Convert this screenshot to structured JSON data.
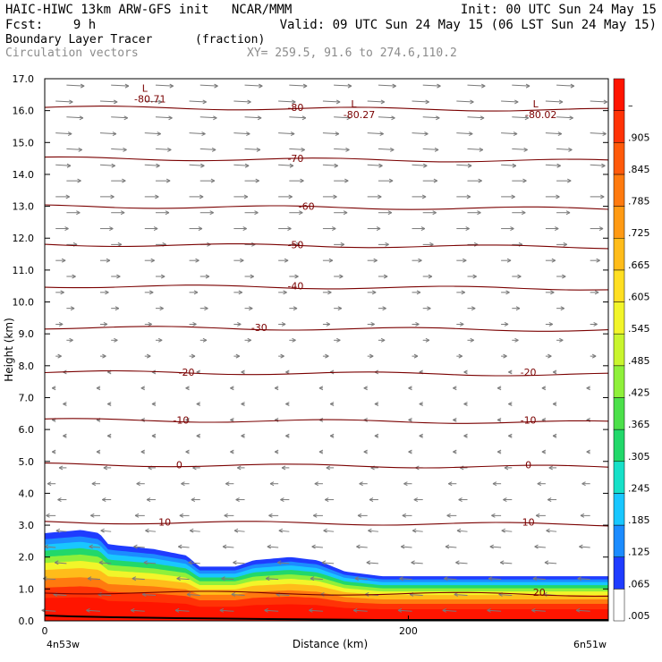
{
  "header": {
    "line1_left": "HAIC-HIWC 13km ARW-GFS init   NCAR/MMM",
    "line1_right": "Init: 00 UTC Sun 24 May 15",
    "fcst_label": "Fcst:    9 h",
    "valid": "Valid: 09 UTC Sun 24 May 15 (06 LST Sun 24 May 15)",
    "field_name": "Boundary Layer Tracer",
    "field_units": "(fraction)",
    "vectors_label": "Circulation vectors",
    "xy_label": "XY= 259.5, 91.6 to 274.6,110.2"
  },
  "chart_data": {
    "type": "cross-section",
    "xlabel": "Distance (km)",
    "ylabel": "Height (km)",
    "xlim": [
      0,
      310
    ],
    "ylim": [
      0,
      17
    ],
    "x_ticks": [
      "0",
      "200"
    ],
    "x_end_labels": [
      "4n53w",
      "6n51w"
    ],
    "y_ticks": [
      "0.0",
      "1.0",
      "2.0",
      "3.0",
      "4.0",
      "5.0",
      "6.0",
      "7.0",
      "8.0",
      "9.0",
      "10.0",
      "11.0",
      "12.0",
      "13.0",
      "14.0",
      "15.0",
      "16.0",
      "17.0"
    ],
    "colorbar_labels": [
      ".005",
      ".065",
      ".125",
      ".185",
      ".245",
      ".305",
      ".365",
      ".425",
      ".485",
      ".545",
      ".605",
      ".665",
      ".725",
      ".785",
      ".845",
      ".905",
      "–"
    ],
    "colorbar_colors": [
      "#ffffff",
      "#1f3cff",
      "#1c8cff",
      "#19c7ff",
      "#17e0c8",
      "#22d86a",
      "#4ce04a",
      "#8ff03a",
      "#c9f52e",
      "#f2f52a",
      "#ffdf22",
      "#ffbc1a",
      "#ff9a14",
      "#ff7a0f",
      "#ff5a0a",
      "#ff3306",
      "#ff1500"
    ],
    "boundary_layer_top_km": [
      {
        "x": 0,
        "h": 2.75
      },
      {
        "x": 10,
        "h": 2.8
      },
      {
        "x": 20,
        "h": 2.85
      },
      {
        "x": 30,
        "h": 2.75
      },
      {
        "x": 35,
        "h": 2.4
      },
      {
        "x": 60,
        "h": 2.25
      },
      {
        "x": 78,
        "h": 2.05
      },
      {
        "x": 85,
        "h": 1.7
      },
      {
        "x": 105,
        "h": 1.7
      },
      {
        "x": 115,
        "h": 1.9
      },
      {
        "x": 135,
        "h": 2.0
      },
      {
        "x": 150,
        "h": 1.9
      },
      {
        "x": 165,
        "h": 1.55
      },
      {
        "x": 185,
        "h": 1.4
      },
      {
        "x": 220,
        "h": 1.4
      },
      {
        "x": 260,
        "h": 1.4
      },
      {
        "x": 310,
        "h": 1.4
      }
    ],
    "temperature_contours": [
      {
        "label": "-80",
        "h": 16.1
      },
      {
        "label": "-70",
        "h": 14.5
      },
      {
        "label": "-60",
        "h": 13.0
      },
      {
        "label": "-50",
        "h": 11.8
      },
      {
        "label": "-40",
        "h": 10.5
      },
      {
        "label": "-30",
        "h": 9.2
      },
      {
        "label": "-20",
        "h": 7.8
      },
      {
        "label": "-10",
        "h": 6.3
      },
      {
        "label": "0",
        "h": 4.9
      },
      {
        "label": "10",
        "h": 3.1
      },
      {
        "label": "20",
        "h": 0.9
      }
    ],
    "contour_label_positions": [
      {
        "label": "-80",
        "x": 138
      },
      {
        "label": "-70",
        "x": 138
      },
      {
        "label": "-60",
        "x": 144
      },
      {
        "label": "-50",
        "x": 138
      },
      {
        "label": "-40",
        "x": 138
      },
      {
        "label": "-30",
        "x": 118
      },
      {
        "label": "-20",
        "x": 78
      },
      {
        "label": "-20",
        "x": 266
      },
      {
        "label": "-10",
        "x": 75
      },
      {
        "label": "-10",
        "x": 266
      },
      {
        "label": "0",
        "x": 74
      },
      {
        "label": "0",
        "x": 266
      },
      {
        "label": "10",
        "x": 66
      },
      {
        "label": "10",
        "x": 266
      },
      {
        "label": "20",
        "x": 272
      }
    ],
    "minima": [
      {
        "label": "L",
        "value": "-80.71",
        "x": 55,
        "h": 16.6
      },
      {
        "label": "L",
        "value": "-80.27",
        "x": 170,
        "h": 16.1
      },
      {
        "label": "L",
        "value": "-80.02",
        "x": 270,
        "h": 16.1
      }
    ]
  }
}
